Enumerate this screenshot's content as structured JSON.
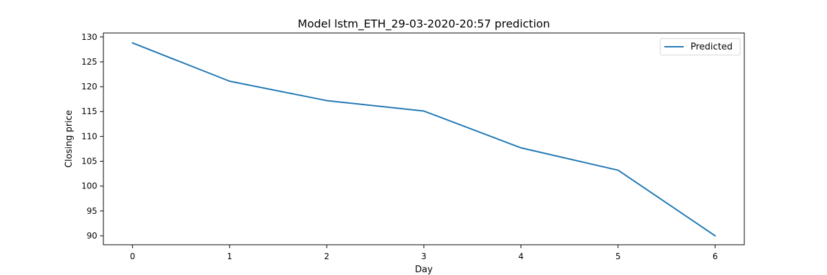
{
  "chart_data": {
    "type": "line",
    "title": "Model lstm_ETH_29-03-2020-20:57 prediction",
    "xlabel": "Day",
    "ylabel": "Closing price",
    "x": [
      0,
      1,
      2,
      3,
      4,
      5,
      6
    ],
    "xticks": [
      "0",
      "1",
      "2",
      "3",
      "4",
      "5",
      "6"
    ],
    "yticks": [
      "90",
      "95",
      "100",
      "105",
      "110",
      "115",
      "120",
      "125",
      "130"
    ],
    "xlim": [
      -0.3,
      6.3
    ],
    "ylim": [
      88.2,
      130.8
    ],
    "series": [
      {
        "name": "Predicted",
        "values": [
          128.8,
          121.1,
          117.2,
          115.1,
          107.7,
          103.2,
          90.0
        ],
        "color": "#1f77b4"
      }
    ],
    "legend_position": "top-right",
    "grid": false
  }
}
